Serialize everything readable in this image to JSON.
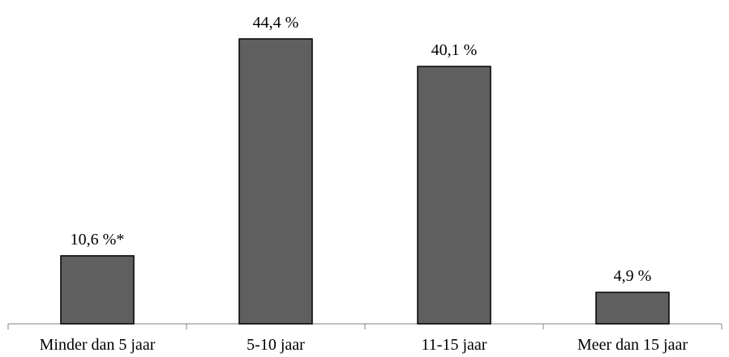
{
  "chart_data": {
    "type": "bar",
    "categories": [
      "Minder dan 5 jaar",
      "5-10 jaar",
      "11-15 jaar",
      "Meer dan 15 jaar"
    ],
    "values": [
      10.6,
      44.4,
      40.1,
      4.9
    ],
    "data_labels": [
      "10,6 %*",
      "44,4 %",
      "40,1 %",
      "4,9 %"
    ],
    "title": "",
    "xlabel": "",
    "ylabel": "",
    "ylim": [
      0,
      44.4
    ],
    "grid": false,
    "legend": "none",
    "bar_color": "#5f5f5f"
  }
}
